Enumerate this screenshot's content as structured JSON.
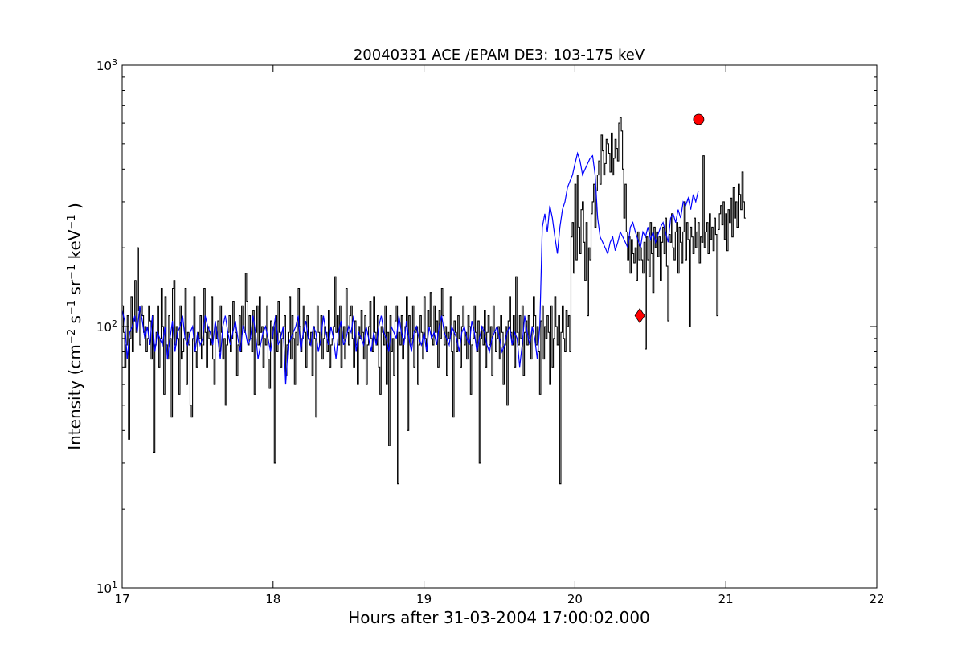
{
  "chart_data": {
    "type": "line",
    "title": "20040331 ACE /EPAM DE3: 103-175 keV",
    "xlabel": "Hours after 31-03-2004 17:00:02.000",
    "ylabel": {
      "prefix": "Intensity (cm",
      "sup1": "−2",
      "mid1": " s",
      "sup2": "−1",
      "mid2": " sr",
      "sup3": "−1",
      "mid3": " keV",
      "sup4": "−1",
      "suffix": " )"
    },
    "xlim": [
      17,
      22
    ],
    "ylim": [
      10,
      1000
    ],
    "yscale": "log",
    "x_ticks": [
      {
        "value": 17,
        "label": "17"
      },
      {
        "value": 18,
        "label": "18"
      },
      {
        "value": 19,
        "label": "19"
      },
      {
        "value": 20,
        "label": "20"
      },
      {
        "value": 21,
        "label": "21"
      },
      {
        "value": 22,
        "label": "22"
      }
    ],
    "y_ticks": [
      {
        "value": 10,
        "base": "10",
        "exp": "1"
      },
      {
        "value": 100,
        "base": "10",
        "exp": "2"
      },
      {
        "value": 1000,
        "base": "10",
        "exp": "3"
      }
    ],
    "grid": false,
    "series": [
      {
        "style": "steps",
        "color": "#000000",
        "x_start": 17.0,
        "x_step": 0.00833,
        "values": [
          120,
          95,
          70,
          85,
          110,
          37,
          90,
          130,
          80,
          105,
          150,
          95,
          200,
          115,
          85,
          120,
          110,
          95,
          100,
          80,
          90,
          120,
          105,
          75,
          110,
          33,
          85,
          95,
          120,
          70,
          90,
          140,
          100,
          55,
          130,
          85,
          75,
          110,
          90,
          45,
          140,
          150,
          85,
          100,
          90,
          55,
          120,
          75,
          80,
          90,
          140,
          60,
          95,
          85,
          50,
          45,
          90,
          130,
          80,
          70,
          95,
          90,
          110,
          75,
          85,
          140,
          95,
          70,
          100,
          90,
          85,
          130,
          75,
          60,
          100,
          90,
          105,
          80,
          120,
          95,
          75,
          90,
          50,
          85,
          95,
          110,
          80,
          90,
          125,
          100,
          95,
          65,
          85,
          110,
          80,
          120,
          100,
          95,
          160,
          125,
          85,
          110,
          90,
          80,
          115,
          55,
          95,
          120,
          85,
          130,
          95,
          100,
          70,
          90,
          85,
          120,
          75,
          58,
          105,
          90,
          100,
          30,
          110,
          80,
          125,
          95,
          70,
          90,
          100,
          110,
          65,
          85,
          95,
          130,
          75,
          110,
          90,
          60,
          95,
          85,
          140,
          100,
          80,
          90,
          120,
          95,
          70,
          110,
          90,
          85,
          95,
          65,
          100,
          90,
          45,
          120,
          95,
          85,
          110,
          75,
          90,
          100,
          95,
          80,
          115,
          70,
          85,
          90,
          100,
          155,
          95,
          110,
          85,
          120,
          70,
          90,
          100,
          75,
          140,
          95,
          85,
          110,
          120,
          90,
          70,
          105,
          85,
          60,
          100,
          90,
          115,
          95,
          75,
          110,
          60,
          85,
          100,
          125,
          90,
          80,
          130,
          95,
          85,
          110,
          70,
          55,
          100,
          95,
          85,
          120,
          60,
          95,
          35,
          110,
          80,
          90,
          65,
          105,
          120,
          25,
          95,
          85,
          110,
          75,
          90,
          100,
          130,
          40,
          110,
          85,
          90,
          120,
          70,
          95,
          100,
          60,
          85,
          110,
          95,
          75,
          130,
          90,
          80,
          115,
          100,
          135,
          90,
          85,
          120,
          95,
          105,
          70,
          115,
          90,
          140,
          110,
          85,
          100,
          65,
          95,
          90,
          130,
          80,
          45,
          105,
          95,
          80,
          110,
          90,
          70,
          100,
          120,
          85,
          95,
          75,
          110,
          100,
          55,
          85,
          90,
          120,
          95,
          80,
          105,
          30,
          90,
          100,
          85,
          115,
          70,
          95,
          110,
          85,
          100,
          65,
          120,
          95,
          80,
          90,
          100,
          75,
          110,
          95,
          60,
          85,
          100,
          50,
          105,
          130,
          95,
          85,
          110,
          70,
          155,
          95,
          85,
          110,
          90,
          120,
          65,
          95,
          105,
          85,
          110,
          90,
          75,
          100,
          130,
          110,
          85,
          100,
          80,
          55,
          105,
          120,
          75,
          100,
          90,
          110,
          95,
          60,
          120,
          70,
          90,
          130,
          100,
          85,
          110,
          25,
          95,
          120,
          90,
          80,
          115,
          100,
          110,
          80,
          220,
          250,
          160,
          350,
          180,
          380,
          240,
          190,
          280,
          300,
          210,
          150,
          250,
          110,
          200,
          180,
          270,
          300,
          350,
          240,
          330,
          380,
          430,
          350,
          540,
          470,
          380,
          420,
          520,
          500,
          460,
          390,
          550,
          380,
          440,
          520,
          480,
          430,
          600,
          630,
          560,
          400,
          260,
          350,
          230,
          180,
          220,
          160,
          215,
          190,
          175,
          200,
          150,
          230,
          180,
          200,
          180,
          160,
          210,
          82,
          220,
          180,
          155,
          250,
          190,
          135,
          240,
          200,
          230,
          185,
          220,
          150,
          210,
          240,
          190,
          260,
          170,
          105,
          225,
          210,
          270,
          200,
          180,
          230,
          250,
          160,
          240,
          210,
          175,
          230,
          300,
          180,
          250,
          215,
          100,
          240,
          220,
          190,
          260,
          200,
          230,
          250,
          175,
          220,
          210,
          450,
          200,
          230,
          250,
          190,
          270,
          215,
          240,
          195,
          260,
          225,
          110,
          235,
          270,
          290,
          245,
          300,
          215,
          270,
          195,
          280,
          250,
          310,
          220,
          340,
          260,
          300,
          240,
          350,
          320,
          280,
          390,
          300,
          260
        ]
      },
      {
        "style": "line",
        "color": "#0000ff",
        "x_start": 17.0,
        "x_step": 0.01667,
        "values": [
          115,
          105,
          75,
          95,
          100,
          110,
          95,
          120,
          105,
          90,
          100,
          85,
          110,
          80,
          95,
          90,
          85,
          100,
          75,
          90,
          105,
          80,
          95,
          100,
          110,
          90,
          85,
          95,
          100,
          80,
          95,
          85,
          90,
          110,
          100,
          95,
          85,
          105,
          90,
          75,
          100,
          110,
          95,
          85,
          95,
          105,
          90,
          80,
          100,
          95,
          85,
          90,
          110,
          95,
          75,
          85,
          95,
          100,
          90,
          80,
          95,
          110,
          85,
          90,
          100,
          60,
          85,
          90,
          95,
          100,
          110,
          80,
          95,
          105,
          90,
          85,
          100,
          95,
          80,
          90,
          110,
          95,
          85,
          100,
          90,
          75,
          95,
          105,
          85,
          90,
          100,
          95,
          110,
          80,
          95,
          90,
          85,
          100,
          90,
          80,
          95,
          85,
          100,
          110,
          95,
          90,
          80,
          100,
          95,
          90,
          110,
          95,
          85,
          105,
          90,
          80,
          95,
          100,
          90,
          85,
          95,
          80,
          100,
          90,
          95,
          85,
          100,
          110,
          95,
          90,
          85,
          100,
          95,
          90,
          80,
          95,
          100,
          90,
          85,
          105,
          95,
          80,
          90,
          100,
          95,
          85,
          80,
          90,
          95,
          100,
          90,
          80,
          85,
          95,
          100,
          85,
          95,
          90,
          70,
          85,
          110,
          95,
          85,
          100,
          90,
          75,
          100,
          240,
          270,
          230,
          290,
          260,
          220,
          190,
          240,
          280,
          300,
          340,
          360,
          380,
          420,
          460,
          430,
          380,
          400,
          420,
          440,
          450,
          380,
          260,
          220,
          210,
          200,
          190,
          210,
          220,
          195,
          210,
          230,
          220,
          210,
          200,
          240,
          250,
          230,
          215,
          200,
          230,
          220,
          240,
          215,
          230,
          210,
          225,
          240,
          250,
          230,
          210,
          260,
          270,
          250,
          280,
          260,
          300,
          290,
          310,
          280,
          320,
          300,
          330
        ]
      }
    ],
    "markers": [
      {
        "shape": "diamond",
        "color": "#ff0000",
        "x": 20.43,
        "y": 110
      },
      {
        "shape": "circle",
        "color": "#ff0000",
        "x": 20.82,
        "y": 620
      }
    ]
  }
}
